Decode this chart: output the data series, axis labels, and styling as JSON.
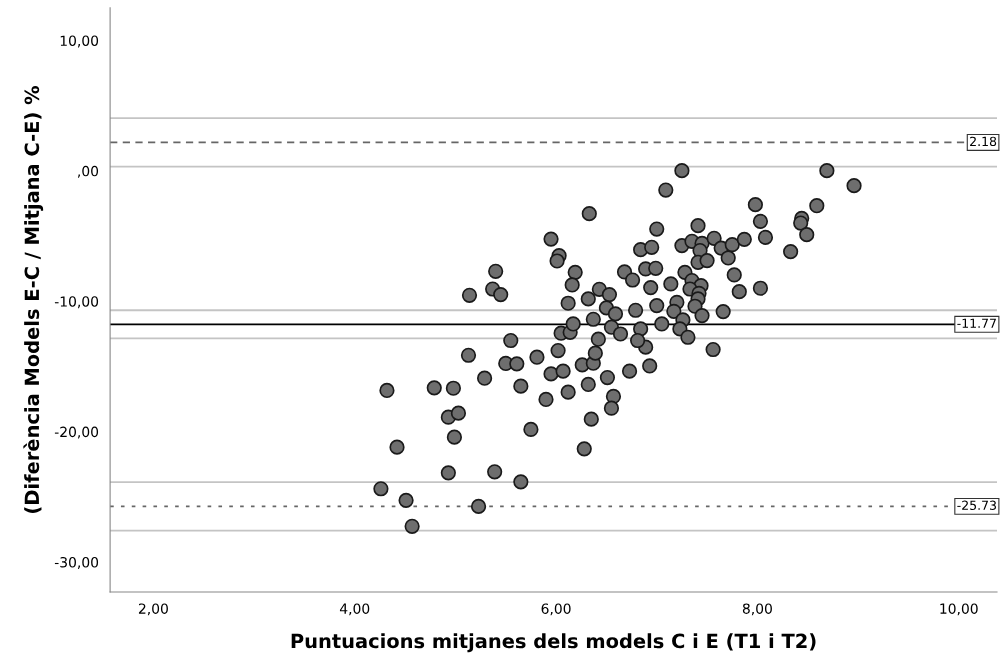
{
  "chart_data": {
    "type": "scatter",
    "xlabel": "Puntuacions mitjanes dels models C i E (T1 i T2)",
    "ylabel": "(Diferència Models E-C / Mitjana C-E) %",
    "xlim": [
      1.57,
      10.38
    ],
    "ylim": [
      -32.3,
      12.5
    ],
    "xticks": [
      {
        "value": 2,
        "label": "2,00"
      },
      {
        "value": 4,
        "label": "4,00"
      },
      {
        "value": 6,
        "label": "6,00"
      },
      {
        "value": 8,
        "label": "8,00"
      },
      {
        "value": 10,
        "label": "10,00"
      }
    ],
    "yticks": [
      {
        "value": 10,
        "label": "10,00"
      },
      {
        "value": 0,
        "label": ",00"
      },
      {
        "value": -10,
        "label": "-10,00"
      },
      {
        "value": -20,
        "label": "-20,00"
      },
      {
        "value": -30,
        "label": "-30,00"
      }
    ],
    "grid": false,
    "legend": false,
    "marker": "circle",
    "series": [
      {
        "color": "#6e6e6e",
        "x": [
          4.32,
          4.42,
          4.26,
          4.51,
          4.57,
          4.79,
          4.98,
          4.93,
          5.03,
          4.99,
          4.93,
          5.39,
          5.23,
          5.65,
          5.13,
          5.14,
          5.81,
          6.02,
          5.5,
          5.61,
          5.29,
          5.95,
          6.07,
          5.65,
          6.26,
          6.37,
          6.39,
          5.9,
          6.12,
          6.32,
          6.51,
          6.73,
          6.93,
          6.57,
          6.55,
          6.35,
          5.75,
          6.28,
          7.56,
          6.89,
          5.4,
          5.37,
          5.45,
          5.55,
          5.95,
          6.03,
          6.01,
          6.19,
          6.16,
          6.12,
          6.32,
          6.33,
          6.05,
          6.14,
          6.17,
          6.37,
          6.42,
          6.43,
          6.53,
          6.5,
          6.59,
          6.55,
          6.64,
          6.68,
          6.76,
          6.79,
          6.84,
          6.81,
          6.84,
          6.95,
          7.0,
          6.89,
          6.99,
          6.94,
          7.0,
          7.25,
          7.09,
          7.41,
          7.25,
          7.35,
          7.45,
          7.43,
          7.41,
          7.5,
          7.57,
          7.64,
          7.75,
          7.87,
          7.71,
          7.98,
          8.03,
          8.08,
          7.77,
          7.82,
          8.03,
          7.66,
          7.28,
          7.35,
          7.44,
          7.33,
          7.42,
          7.41,
          7.38,
          7.45,
          7.14,
          7.2,
          7.17,
          7.26,
          7.23,
          7.31,
          7.05,
          8.69,
          8.96,
          8.59,
          8.44,
          8.43,
          8.49,
          8.33
        ],
        "values": [
          -16.84,
          -21.19,
          -24.38,
          -25.27,
          -27.26,
          -16.64,
          -16.67,
          -18.89,
          -18.58,
          -20.42,
          -23.16,
          -23.08,
          -25.73,
          -23.85,
          -14.14,
          -9.54,
          -14.29,
          -13.78,
          -14.77,
          -14.8,
          -15.9,
          -15.57,
          -15.36,
          -16.51,
          -14.88,
          -14.75,
          -13.98,
          -17.53,
          -16.97,
          -16.38,
          -15.85,
          -15.36,
          -14.96,
          -17.3,
          -18.2,
          -19.04,
          -19.83,
          -21.32,
          -13.7,
          -13.52,
          -7.7,
          -9.06,
          -9.49,
          -13.01,
          -5.23,
          -6.5,
          -6.91,
          -7.78,
          -8.75,
          -10.15,
          -9.82,
          -3.28,
          -12.45,
          -12.38,
          -11.74,
          -11.38,
          -12.91,
          -9.08,
          -9.49,
          -10.51,
          -10.97,
          -11.99,
          -12.51,
          -7.75,
          -8.37,
          -10.69,
          -12.12,
          -13.01,
          -6.04,
          -5.86,
          -4.46,
          -7.52,
          -7.47,
          -8.95,
          -10.33,
          0.02,
          -1.47,
          -4.2,
          -5.73,
          -5.4,
          -5.56,
          -6.11,
          -7.01,
          -6.88,
          -5.17,
          -5.92,
          -5.66,
          -5.25,
          -6.68,
          -2.59,
          -3.87,
          -5.1,
          -7.98,
          -9.26,
          -9.0,
          -10.79,
          -7.78,
          -8.41,
          -8.8,
          -9.06,
          -9.39,
          -9.82,
          -10.38,
          -11.1,
          -8.67,
          -10.08,
          -10.77,
          -11.43,
          -12.12,
          -12.76,
          -11.74,
          0.02,
          -1.13,
          -2.67,
          -3.64,
          -4.0,
          -4.89,
          -6.19
        ]
      }
    ],
    "ref_lines": [
      {
        "axis": "y",
        "value": 4.04,
        "color": "#c4c4c4",
        "line_style": "solid"
      },
      {
        "axis": "y",
        "value": 2.18,
        "label": "2.18",
        "color": "#666666",
        "line_style": "dashed"
      },
      {
        "axis": "y",
        "value": 0.32,
        "color": "#c4c4c4",
        "line_style": "solid"
      },
      {
        "axis": "y",
        "value": -10.69,
        "color": "#c4c4c4",
        "line_style": "solid"
      },
      {
        "axis": "y",
        "value": -11.77,
        "label": "-11.77",
        "color": "#000000",
        "line_style": "solid"
      },
      {
        "axis": "y",
        "value": -12.85,
        "color": "#c4c4c4",
        "line_style": "solid"
      },
      {
        "axis": "y",
        "value": -23.87,
        "color": "#c4c4c4",
        "line_style": "solid"
      },
      {
        "axis": "y",
        "value": -25.73,
        "label": "-25.73",
        "color": "#666666",
        "line_style": "dotted"
      },
      {
        "axis": "y",
        "value": -27.59,
        "color": "#c4c4c4",
        "line_style": "solid"
      }
    ]
  }
}
